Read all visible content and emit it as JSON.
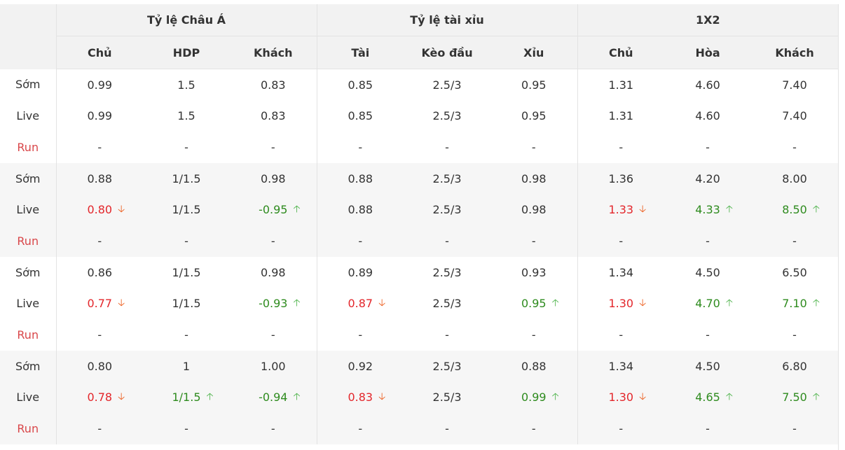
{
  "groups": [
    "Tỷ lệ Châu Á",
    "Tỷ lệ tài xỉu",
    "1X2"
  ],
  "columns": [
    "Chủ",
    "HDP",
    "Khách",
    "Tài",
    "Kèo đầu",
    "Xỉu",
    "Chủ",
    "Hòa",
    "Khách"
  ],
  "blocks": [
    {
      "rows": [
        {
          "label": "Sớm",
          "cells": [
            {
              "v": "0.99"
            },
            {
              "v": "1.5"
            },
            {
              "v": "0.83"
            },
            {
              "v": "0.85"
            },
            {
              "v": "2.5/3"
            },
            {
              "v": "0.95"
            },
            {
              "v": "1.31"
            },
            {
              "v": "4.60"
            },
            {
              "v": "7.40"
            }
          ]
        },
        {
          "label": "Live",
          "cells": [
            {
              "v": "0.99"
            },
            {
              "v": "1.5"
            },
            {
              "v": "0.83"
            },
            {
              "v": "0.85"
            },
            {
              "v": "2.5/3"
            },
            {
              "v": "0.95"
            },
            {
              "v": "1.31"
            },
            {
              "v": "4.60"
            },
            {
              "v": "7.40"
            }
          ]
        },
        {
          "label": "Run",
          "cells": [
            {
              "v": "-"
            },
            {
              "v": "-"
            },
            {
              "v": "-"
            },
            {
              "v": "-"
            },
            {
              "v": "-"
            },
            {
              "v": "-"
            },
            {
              "v": "-"
            },
            {
              "v": "-"
            },
            {
              "v": "-"
            }
          ]
        }
      ]
    },
    {
      "rows": [
        {
          "label": "Sớm",
          "cells": [
            {
              "v": "0.88"
            },
            {
              "v": "1/1.5"
            },
            {
              "v": "0.98"
            },
            {
              "v": "0.88"
            },
            {
              "v": "2.5/3"
            },
            {
              "v": "0.98"
            },
            {
              "v": "1.36"
            },
            {
              "v": "4.20"
            },
            {
              "v": "8.00"
            }
          ]
        },
        {
          "label": "Live",
          "cells": [
            {
              "v": "0.80",
              "t": "down"
            },
            {
              "v": "1/1.5"
            },
            {
              "v": "-0.95",
              "t": "up"
            },
            {
              "v": "0.88"
            },
            {
              "v": "2.5/3"
            },
            {
              "v": "0.98"
            },
            {
              "v": "1.33",
              "t": "down"
            },
            {
              "v": "4.33",
              "t": "up"
            },
            {
              "v": "8.50",
              "t": "up"
            }
          ]
        },
        {
          "label": "Run",
          "cells": [
            {
              "v": "-"
            },
            {
              "v": "-"
            },
            {
              "v": "-"
            },
            {
              "v": "-"
            },
            {
              "v": "-"
            },
            {
              "v": "-"
            },
            {
              "v": "-"
            },
            {
              "v": "-"
            },
            {
              "v": "-"
            }
          ]
        }
      ]
    },
    {
      "rows": [
        {
          "label": "Sớm",
          "cells": [
            {
              "v": "0.86"
            },
            {
              "v": "1/1.5"
            },
            {
              "v": "0.98"
            },
            {
              "v": "0.89"
            },
            {
              "v": "2.5/3"
            },
            {
              "v": "0.93"
            },
            {
              "v": "1.34"
            },
            {
              "v": "4.50"
            },
            {
              "v": "6.50"
            }
          ]
        },
        {
          "label": "Live",
          "cells": [
            {
              "v": "0.77",
              "t": "down"
            },
            {
              "v": "1/1.5"
            },
            {
              "v": "-0.93",
              "t": "up"
            },
            {
              "v": "0.87",
              "t": "down"
            },
            {
              "v": "2.5/3"
            },
            {
              "v": "0.95",
              "t": "up"
            },
            {
              "v": "1.30",
              "t": "down"
            },
            {
              "v": "4.70",
              "t": "up"
            },
            {
              "v": "7.10",
              "t": "up"
            }
          ]
        },
        {
          "label": "Run",
          "cells": [
            {
              "v": "-"
            },
            {
              "v": "-"
            },
            {
              "v": "-"
            },
            {
              "v": "-"
            },
            {
              "v": "-"
            },
            {
              "v": "-"
            },
            {
              "v": "-"
            },
            {
              "v": "-"
            },
            {
              "v": "-"
            }
          ]
        }
      ]
    },
    {
      "rows": [
        {
          "label": "Sớm",
          "cells": [
            {
              "v": "0.80"
            },
            {
              "v": "1"
            },
            {
              "v": "1.00"
            },
            {
              "v": "0.92"
            },
            {
              "v": "2.5/3"
            },
            {
              "v": "0.88"
            },
            {
              "v": "1.34"
            },
            {
              "v": "4.50"
            },
            {
              "v": "6.80"
            }
          ]
        },
        {
          "label": "Live",
          "cells": [
            {
              "v": "0.78",
              "t": "down"
            },
            {
              "v": "1/1.5",
              "t": "up"
            },
            {
              "v": "-0.94",
              "t": "up"
            },
            {
              "v": "0.83",
              "t": "down"
            },
            {
              "v": "2.5/3"
            },
            {
              "v": "0.99",
              "t": "up"
            },
            {
              "v": "1.30",
              "t": "down"
            },
            {
              "v": "4.65",
              "t": "up"
            },
            {
              "v": "7.50",
              "t": "up"
            }
          ]
        },
        {
          "label": "Run",
          "cells": [
            {
              "v": "-"
            },
            {
              "v": "-"
            },
            {
              "v": "-"
            },
            {
              "v": "-"
            },
            {
              "v": "-"
            },
            {
              "v": "-"
            },
            {
              "v": "-"
            },
            {
              "v": "-"
            },
            {
              "v": "-"
            }
          ]
        }
      ]
    }
  ],
  "icons": {
    "down": "arrow-down-icon",
    "up": "arrow-up-icon"
  },
  "glyphs": {
    "down": "🡣",
    "up": "🡡"
  },
  "colors": {
    "down_text": "#e3262b",
    "up_text": "#2e8b1e",
    "run_label": "#d9474a",
    "header_bg": "#f2f2f2",
    "shade_bg": "#f6f6f6"
  }
}
